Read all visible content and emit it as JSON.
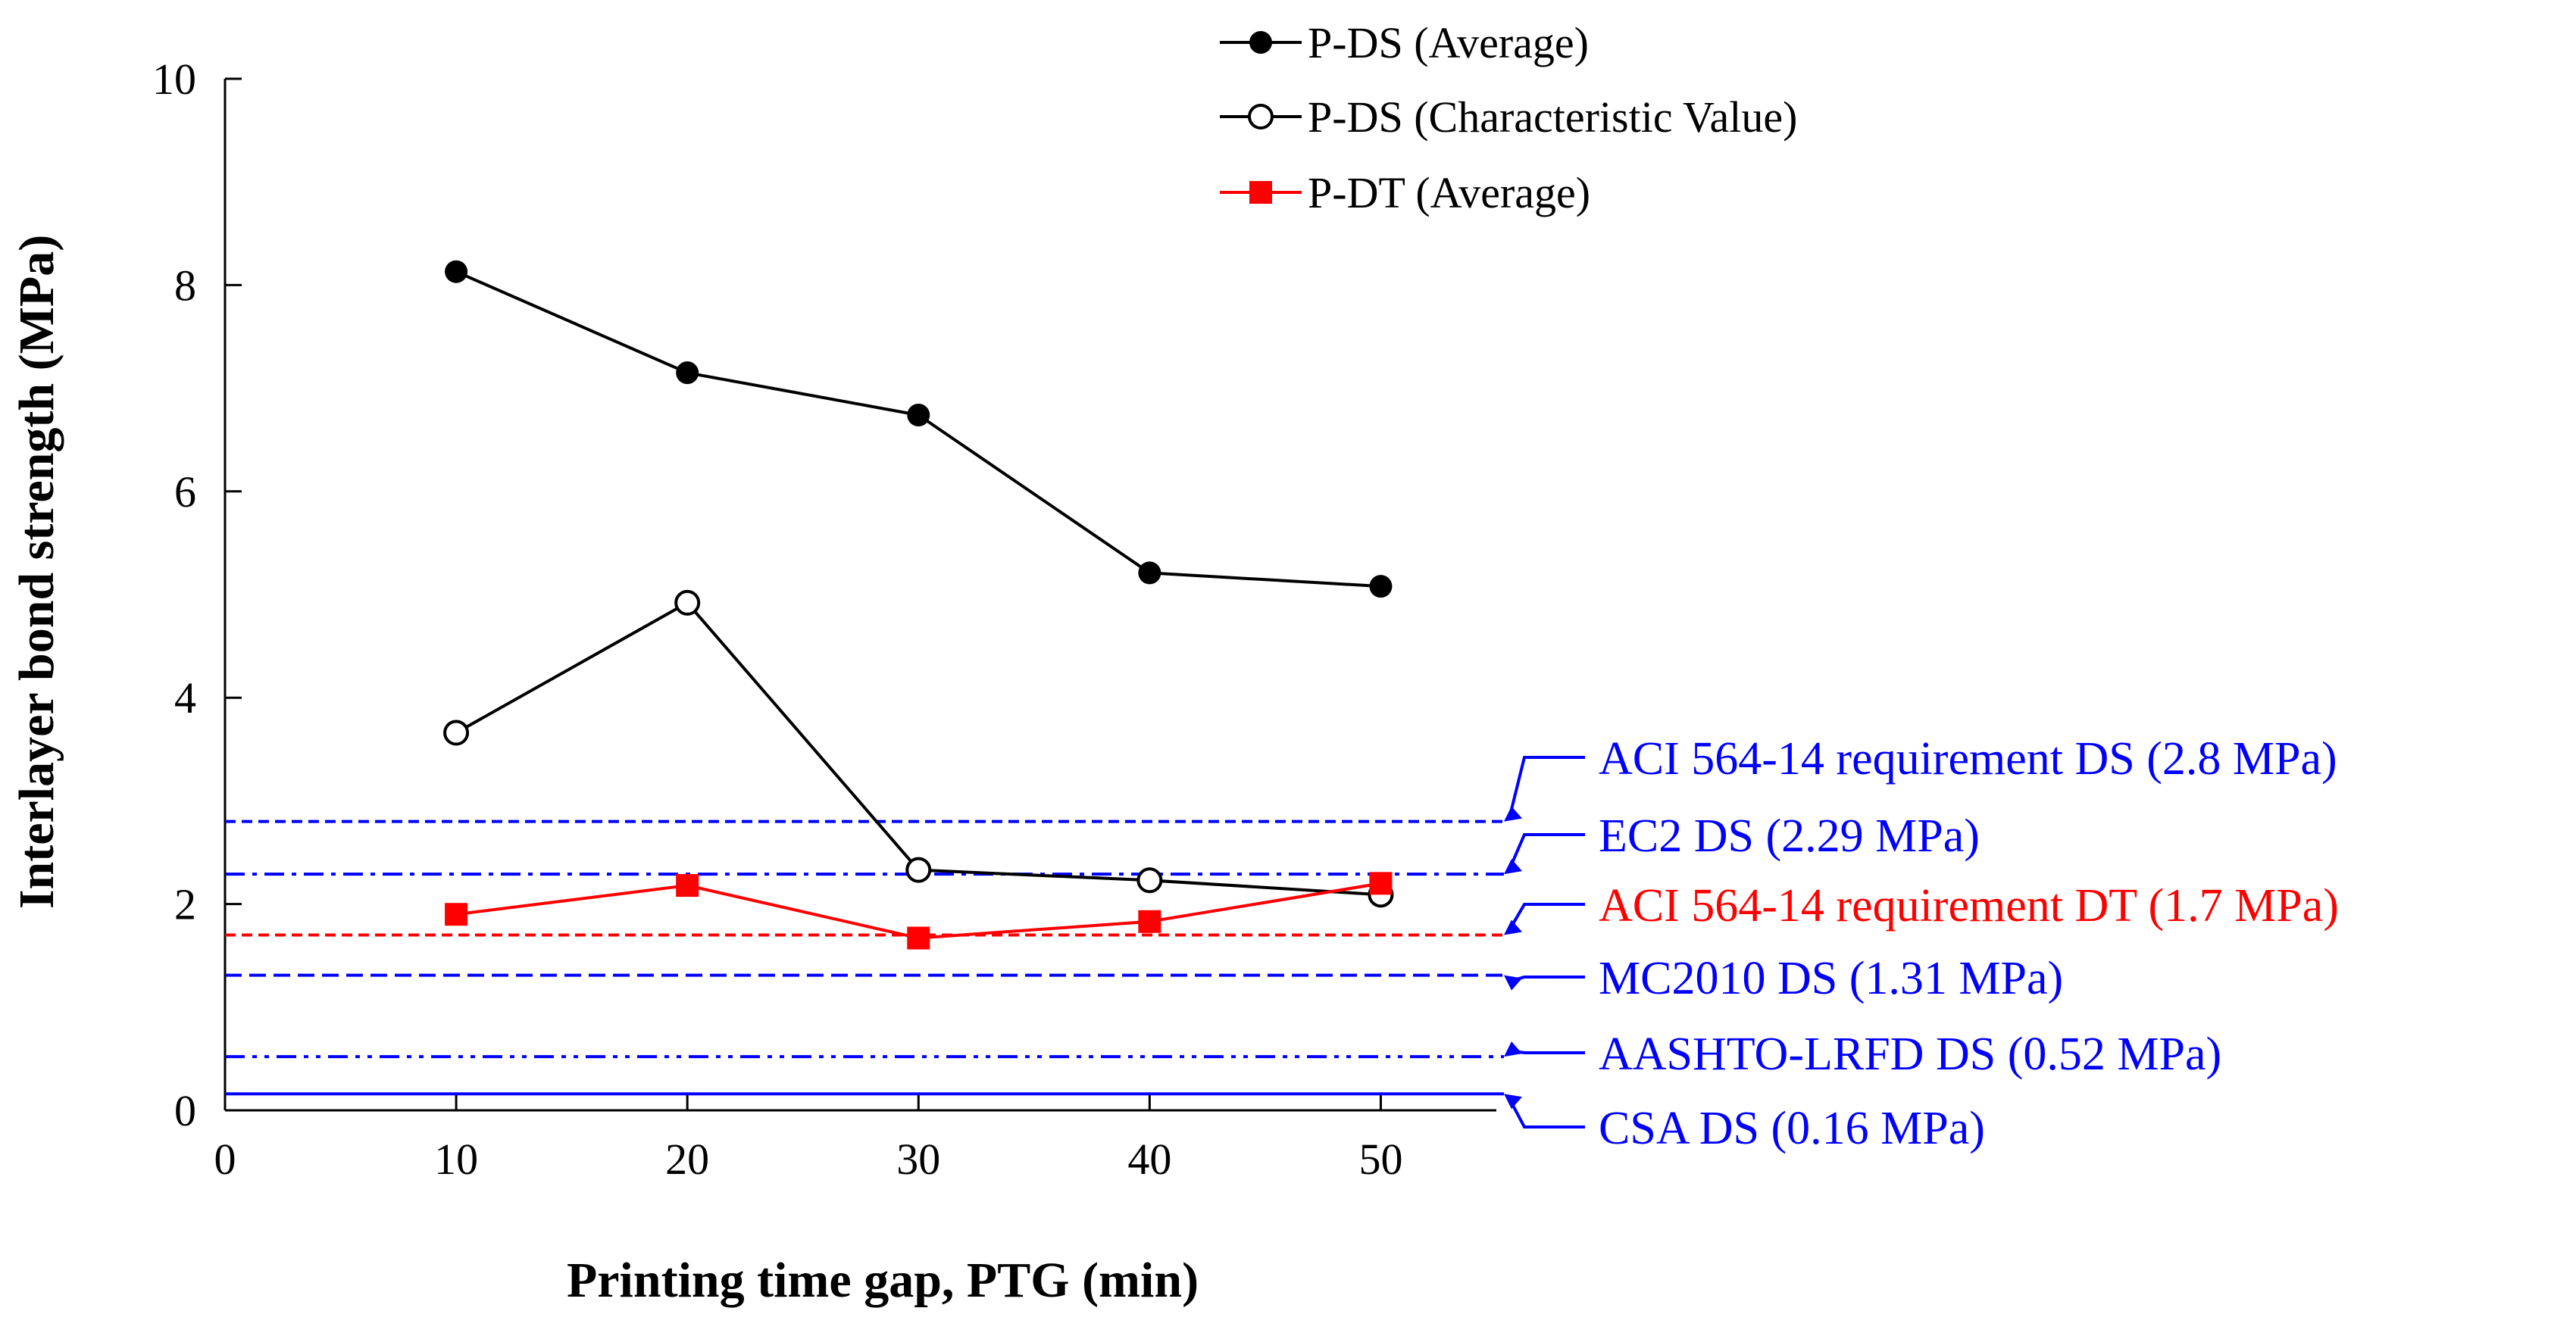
{
  "chart_data": {
    "type": "line",
    "title": "",
    "xlabel": "Printing time gap, PTG (min)",
    "ylabel": "Interlayer bond strength (MPa)",
    "xlim": [
      0,
      55
    ],
    "ylim": [
      0,
      10
    ],
    "xticks": [
      0,
      10,
      20,
      30,
      40,
      50
    ],
    "yticks": [
      0,
      2,
      4,
      6,
      8,
      10
    ],
    "grid": false,
    "legend_position": "top-center",
    "series": [
      {
        "name": "P-DS (Average)",
        "marker": "filled-circle",
        "color": "#000000",
        "x": [
          10,
          20,
          30,
          40,
          50
        ],
        "y": [
          8.13,
          7.15,
          6.74,
          5.21,
          5.08
        ]
      },
      {
        "name": "P-DS (Characteristic Value)",
        "marker": "open-circle",
        "color": "#000000",
        "x": [
          10,
          20,
          30,
          40,
          50
        ],
        "y": [
          3.66,
          4.92,
          2.33,
          2.23,
          2.09
        ]
      },
      {
        "name": "P-DT (Average)",
        "marker": "filled-square",
        "color": "#ff0000",
        "x": [
          10,
          20,
          30,
          40,
          50
        ],
        "y": [
          1.9,
          2.18,
          1.67,
          1.83,
          2.2
        ]
      }
    ],
    "reference_lines": [
      {
        "label": "ACI 564-14 requirement DS (2.8 MPa)",
        "value": 2.8,
        "style": "dashed",
        "color": "#0000ff"
      },
      {
        "label": "EC2 DS (2.29 MPa)",
        "value": 2.29,
        "style": "dash-dot",
        "color": "#0000ff"
      },
      {
        "label": "ACI 564-14 requirement DT (1.7 MPa)",
        "value": 1.7,
        "style": "dashed",
        "color": "#ff0000"
      },
      {
        "label": "MC2010 DS (1.31 MPa)",
        "value": 1.31,
        "style": "long-dashed",
        "color": "#0000ff"
      },
      {
        "label": "AASHTO-LRFD DS (0.52 MPa)",
        "value": 0.52,
        "style": "dash-dot-dot",
        "color": "#0000ff"
      },
      {
        "label": "CSA DS (0.16 MPa)",
        "value": 0.16,
        "style": "solid",
        "color": "#0000ff"
      }
    ]
  }
}
